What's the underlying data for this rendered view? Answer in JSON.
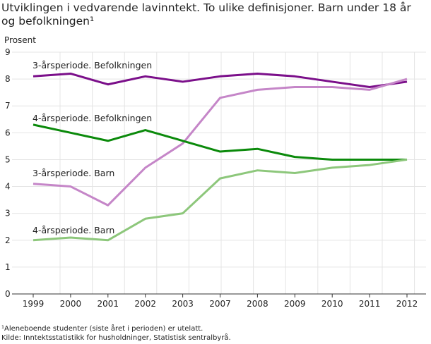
{
  "chart_data": {
    "type": "line",
    "title": "Utviklingen i vedvarende lavinntekt. To ulike definisjoner. Barn under 18 år og befolkningen¹",
    "ylabel": "Prosent",
    "xlabel": "",
    "ylim": [
      0,
      9
    ],
    "yticks": [
      "0",
      "1",
      "2",
      "3",
      "4",
      "5",
      "6",
      "7",
      "8",
      "9"
    ],
    "categories": [
      "1999",
      "2000",
      "2001",
      "2002",
      "2003",
      "2007",
      "2008",
      "2009",
      "2010",
      "2011",
      "2012"
    ],
    "grid": true,
    "series": [
      {
        "name": "3-årsperiode. Befolkningen",
        "color": "#7b0f8a",
        "values": [
          8.1,
          8.2,
          7.8,
          8.1,
          7.9,
          8.1,
          8.2,
          8.1,
          7.9,
          7.7,
          7.9
        ]
      },
      {
        "name": "3-årsperiode. Barn",
        "color": "#c586c8",
        "values": [
          4.1,
          4.0,
          3.3,
          4.7,
          5.6,
          7.3,
          7.6,
          7.7,
          7.7,
          7.6,
          8.0
        ]
      },
      {
        "name": "4-årsperiode. Befolkningen",
        "color": "#0b8a0b",
        "values": [
          6.3,
          6.0,
          5.7,
          6.1,
          5.7,
          5.3,
          5.4,
          5.1,
          5.0,
          5.0,
          5.0
        ]
      },
      {
        "name": "4-årsperiode. Barn",
        "color": "#8dc77b",
        "values": [
          2.0,
          2.1,
          2.0,
          2.8,
          3.0,
          4.3,
          4.6,
          4.5,
          4.7,
          4.8,
          5.0
        ]
      }
    ],
    "footnote": "¹Aleneboende studenter (siste året i perioden) er utelatt.",
    "source": "Kilde: Inntektsstatistikk for husholdninger, Statistisk sentralbyrå."
  }
}
